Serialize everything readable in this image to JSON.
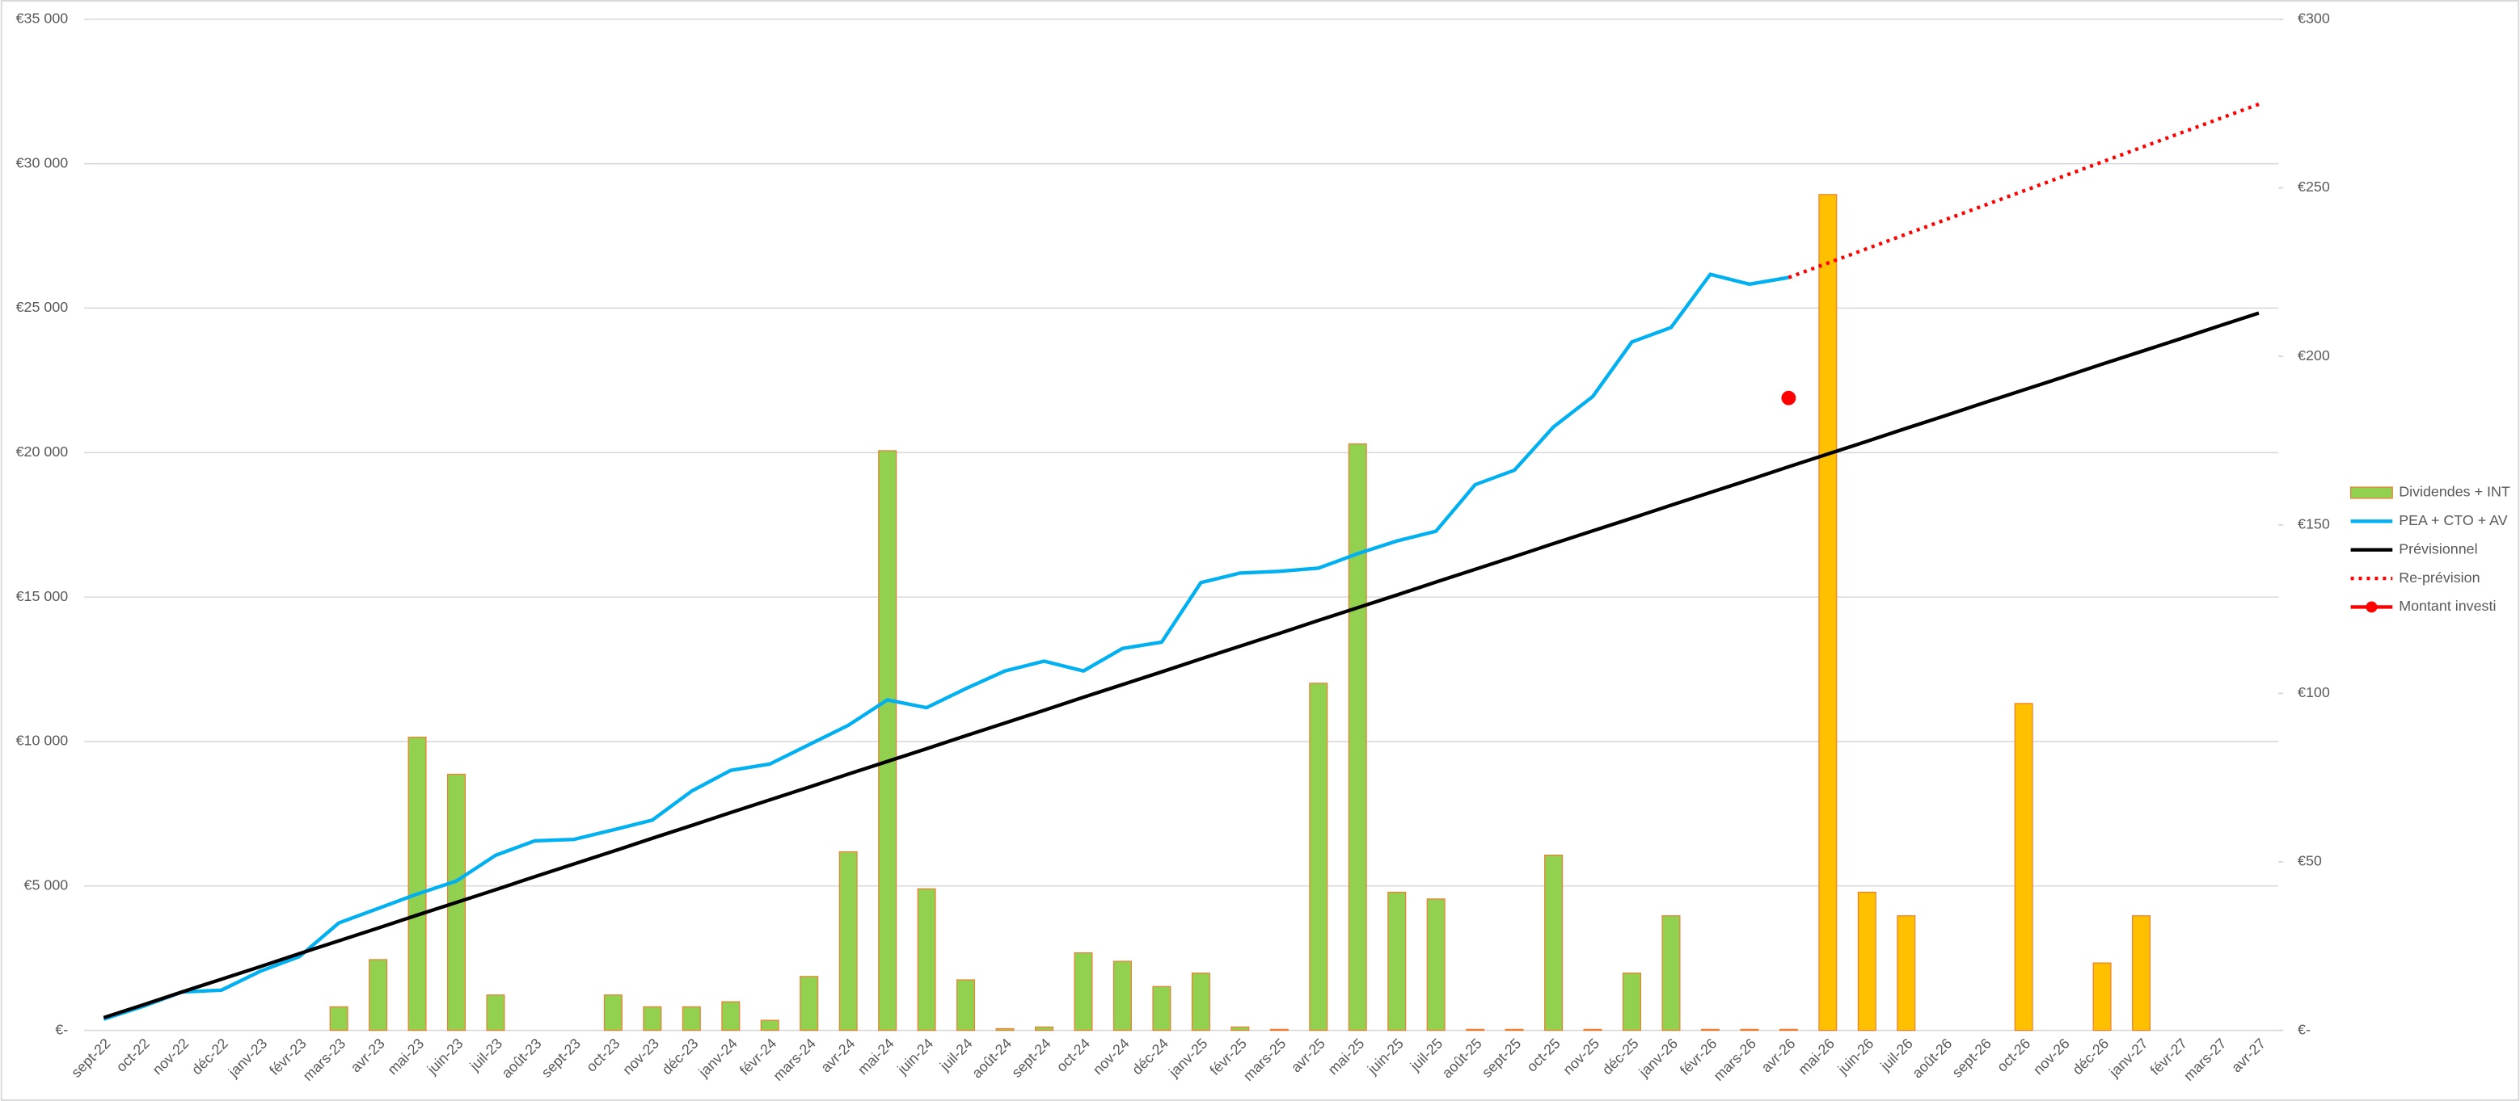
{
  "chart_data": {
    "type": "combo",
    "categories": [
      "sept-22",
      "oct-22",
      "nov-22",
      "déc-22",
      "janv-23",
      "févr-23",
      "mars-23",
      "avr-23",
      "mai-23",
      "juin-23",
      "juil-23",
      "août-23",
      "sept-23",
      "oct-23",
      "nov-23",
      "déc-23",
      "janv-24",
      "févr-24",
      "mars-24",
      "avr-24",
      "mai-24",
      "juin-24",
      "juil-24",
      "août-24",
      "sept-24",
      "oct-24",
      "nov-24",
      "déc-24",
      "janv-25",
      "févr-25",
      "mars-25",
      "avr-25",
      "mai-25",
      "juin-25",
      "juil-25",
      "août-25",
      "sept-25",
      "oct-25",
      "nov-25",
      "déc-25",
      "janv-26",
      "févr-26",
      "mars-26",
      "avr-26",
      "mai-26",
      "juin-26",
      "juil-26",
      "août-26",
      "sept-26",
      "oct-26",
      "nov-26",
      "déc-26",
      "janv-27",
      "févr-27",
      "mars-27",
      "avr-27"
    ],
    "ylim": [
      0,
      35000
    ],
    "yticks": [
      {
        "value": 0,
        "label": "€-"
      },
      {
        "value": 5000,
        "label": "€5 000"
      },
      {
        "value": 10000,
        "label": "€10 000"
      },
      {
        "value": 15000,
        "label": "€15 000"
      },
      {
        "value": 20000,
        "label": "€20 000"
      },
      {
        "value": 25000,
        "label": "€25 000"
      },
      {
        "value": 30000,
        "label": "€30 000"
      },
      {
        "value": 35000,
        "label": "€35 000"
      }
    ],
    "y2lim": [
      0,
      300
    ],
    "y2ticks": [
      {
        "value": 0,
        "label": "€-"
      },
      {
        "value": 50,
        "label": "€50"
      },
      {
        "value": 100,
        "label": "€100"
      },
      {
        "value": 150,
        "label": "€150"
      },
      {
        "value": 200,
        "label": "€200"
      },
      {
        "value": 250,
        "label": "€250"
      },
      {
        "value": 300,
        "label": "€300"
      }
    ],
    "grid": true,
    "legend": "right",
    "series": [
      {
        "name": "Dividendes + INT",
        "type": "bar",
        "axis": "y2",
        "color": "#92d050",
        "edge_color": "#ed7d31",
        "colors": [
          "#92d050",
          "#92d050",
          "#92d050",
          "#92d050",
          "#92d050",
          "#92d050",
          "#92d050",
          "#92d050",
          "#92d050",
          "#92d050",
          "#92d050",
          "#92d050",
          "#92d050",
          "#92d050",
          "#92d050",
          "#92d050",
          "#92d050",
          "#92d050",
          "#92d050",
          "#92d050",
          "#92d050",
          "#92d050",
          "#92d050",
          "#92d050",
          "#92d050",
          "#92d050",
          "#92d050",
          "#92d050",
          "#92d050",
          "#92d050",
          "#92d050",
          "#92d050",
          "#92d050",
          "#92d050",
          "#92d050",
          "#92d050",
          "#92d050",
          "#92d050",
          "#92d050",
          "#92d050",
          "#92d050",
          "#92d050",
          "#92d050",
          "#92d050",
          "#ffc000",
          "#ffc000",
          "#ffc000",
          "#ffc000",
          "#ffc000",
          "#ffc000",
          "#ffc000",
          "#ffc000",
          "#ffc000",
          "#ffc000",
          "#ffc000",
          "#ffc000"
        ],
        "values": [
          0,
          0,
          0,
          0,
          0,
          0,
          7,
          21,
          87,
          76,
          10.5,
          0,
          0,
          10.5,
          7,
          7,
          8.5,
          3,
          16,
          53,
          172,
          42,
          15,
          0.5,
          1,
          23,
          20.5,
          13,
          17,
          1,
          0.3,
          103,
          174,
          41,
          39,
          0.3,
          0.3,
          52,
          0.3,
          17,
          34,
          0.3,
          0.3,
          0.3,
          248,
          41,
          34,
          0,
          0,
          97,
          0,
          20,
          34,
          0,
          0,
          0
        ]
      },
      {
        "name": "PEA + CTO + AV",
        "type": "line",
        "axis": "y",
        "color": "#00b0f0",
        "values": [
          390,
          830,
          1330,
          1390,
          2050,
          2560,
          3720,
          4220,
          4720,
          5170,
          6060,
          6560,
          6610,
          6940,
          7280,
          8280,
          9000,
          9220,
          9890,
          10560,
          11440,
          11170,
          11830,
          12440,
          12780,
          12440,
          13220,
          13440,
          15500,
          15830,
          15890,
          16000,
          16500,
          16940,
          17280,
          18890,
          19390,
          20890,
          21940,
          23830,
          24330,
          26170,
          25830,
          26060,
          null,
          null,
          null,
          null,
          null,
          null,
          null,
          null,
          null,
          null,
          null,
          null
        ]
      },
      {
        "name": "Prévisionnel",
        "type": "line",
        "axis": "y",
        "color": "#000000",
        "values": [
          440,
          880,
          1330,
          1770,
          2210,
          2660,
          3100,
          3540,
          3990,
          4430,
          4870,
          5320,
          5760,
          6200,
          6650,
          7090,
          7540,
          7980,
          8420,
          8870,
          9310,
          9750,
          10200,
          10640,
          11080,
          11530,
          11970,
          12410,
          12860,
          13300,
          13740,
          14190,
          14630,
          15070,
          15520,
          15960,
          16400,
          16850,
          17290,
          17730,
          18180,
          18620,
          19060,
          19510,
          19950,
          20390,
          20840,
          21280,
          21730,
          22170,
          22610,
          23060,
          23500,
          23940,
          24390,
          24830
        ]
      },
      {
        "name": "Re-prévision",
        "type": "line",
        "axis": "y",
        "color": "#ff0000",
        "dashed": true,
        "values": [
          null,
          null,
          null,
          null,
          null,
          null,
          null,
          null,
          null,
          null,
          null,
          null,
          null,
          null,
          null,
          null,
          null,
          null,
          null,
          null,
          null,
          null,
          null,
          null,
          null,
          null,
          null,
          null,
          null,
          null,
          null,
          null,
          null,
          null,
          null,
          null,
          null,
          null,
          null,
          null,
          null,
          null,
          null,
          26060,
          26560,
          27060,
          27560,
          28060,
          28560,
          29060,
          29560,
          30060,
          30560,
          31060,
          31560,
          32060
        ]
      },
      {
        "name": "Montant investi",
        "type": "line",
        "axis": "y",
        "color": "#ff0000",
        "markers": true,
        "values": [
          null,
          null,
          null,
          null,
          null,
          null,
          null,
          null,
          null,
          null,
          null,
          null,
          null,
          null,
          null,
          null,
          null,
          null,
          null,
          null,
          null,
          null,
          null,
          null,
          null,
          null,
          null,
          null,
          null,
          null,
          null,
          null,
          null,
          null,
          null,
          null,
          null,
          null,
          null,
          null,
          null,
          null,
          null,
          21890,
          null,
          null,
          null,
          null,
          null,
          null,
          null,
          null,
          null,
          null,
          null,
          null
        ]
      }
    ]
  }
}
